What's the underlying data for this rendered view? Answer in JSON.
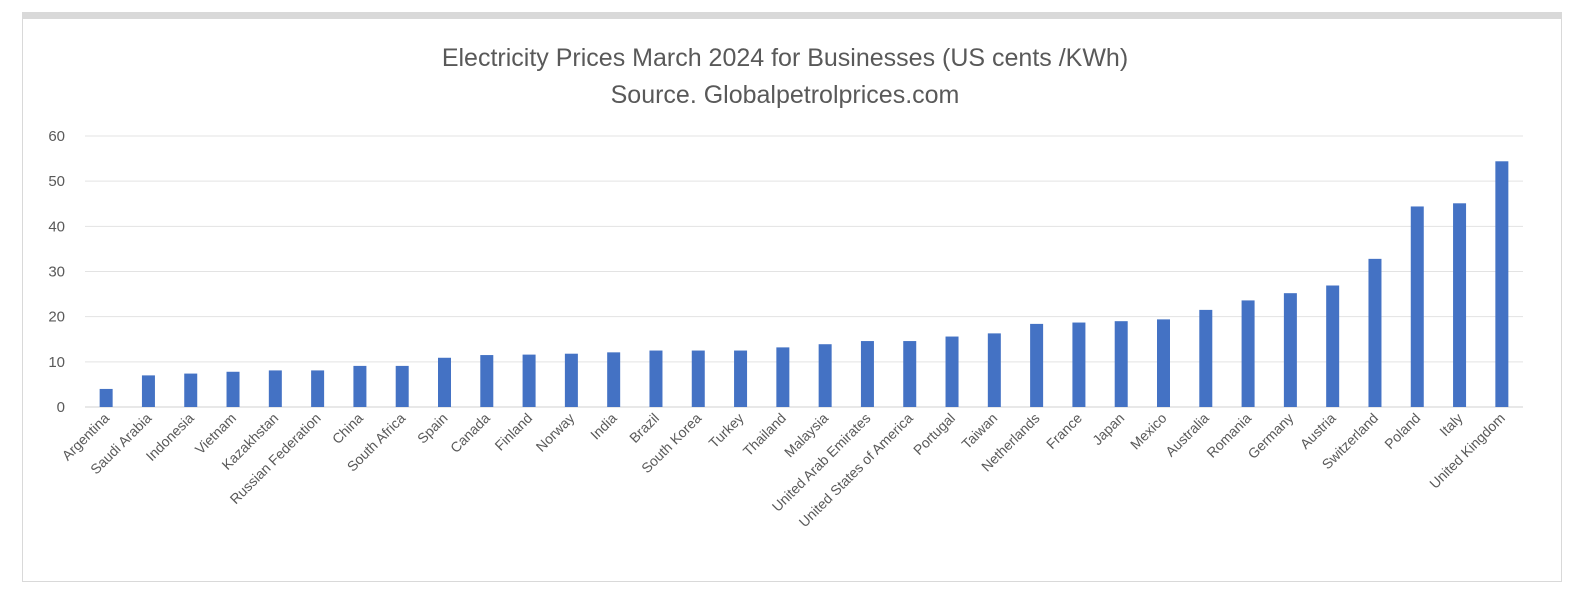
{
  "chart_data": {
    "type": "bar",
    "title": "Electricity Prices March 2024 for Businesses (US cents /KWh)",
    "subtitle": "Source. Globalpetrolprices.com",
    "xlabel": "",
    "ylabel": "",
    "ylim": [
      0,
      60
    ],
    "yticks": [
      "0",
      "10",
      "20",
      "30",
      "40",
      "50",
      "60"
    ],
    "grid": true,
    "legend": "none",
    "bar_color": "#4472c4",
    "categories": [
      "Argentina",
      "Saudi Arabia",
      "Indonesia",
      "Vietnam",
      "Kazakhstan",
      "Russian Federation",
      "China",
      "South Africa",
      "Spain",
      "Canada",
      "Finland",
      "Norway",
      "India",
      "Brazil",
      "South Korea",
      "Turkey",
      "Thailand",
      "Malaysia",
      "United Arab Emirates",
      "United States of America",
      "Portugal",
      "Taiwan",
      "Netherlands",
      "France",
      "Japan",
      "Mexico",
      "Australia",
      "Romania",
      "Germany",
      "Austria",
      "Switzerland",
      "Poland",
      "Italy",
      "United Kingdom"
    ],
    "values": [
      4.0,
      7.0,
      7.4,
      7.8,
      8.1,
      8.1,
      9.1,
      9.1,
      10.9,
      11.5,
      11.6,
      11.8,
      12.1,
      12.5,
      12.5,
      12.5,
      13.2,
      13.9,
      14.6,
      14.6,
      15.6,
      16.3,
      18.4,
      18.7,
      19.0,
      19.4,
      21.5,
      23.6,
      25.2,
      26.9,
      32.8,
      44.4,
      45.1,
      54.4
    ]
  }
}
